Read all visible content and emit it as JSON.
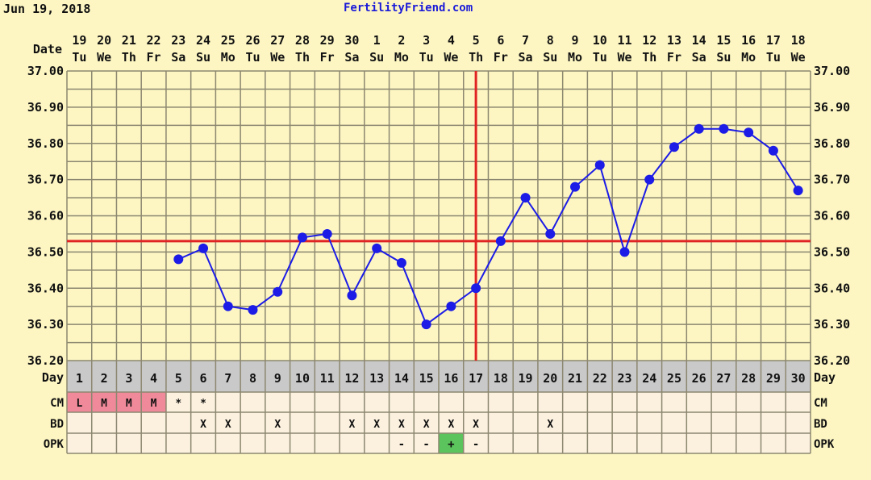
{
  "header": {
    "date": "Jun 19, 2018",
    "site": "FertilityFriend.com"
  },
  "chart_data": {
    "type": "line",
    "title": "FertilityFriend.com",
    "row_labels": {
      "date": "Date",
      "day": "Day",
      "cm": "CM",
      "bd": "BD",
      "opk": "OPK"
    },
    "ylim": [
      36.2,
      37.0
    ],
    "yticks": [
      "37.00",
      "36.90",
      "36.80",
      "36.70",
      "36.60",
      "36.50",
      "36.40",
      "36.30",
      "36.20"
    ],
    "dates": [
      "19",
      "20",
      "21",
      "22",
      "23",
      "24",
      "25",
      "26",
      "27",
      "28",
      "29",
      "30",
      "1",
      "2",
      "3",
      "4",
      "5",
      "6",
      "7",
      "8",
      "9",
      "10",
      "11",
      "12",
      "13",
      "14",
      "15",
      "16",
      "17",
      "18"
    ],
    "weekdays": [
      "Tu",
      "We",
      "Th",
      "Fr",
      "Sa",
      "Su",
      "Mo",
      "Tu",
      "We",
      "Th",
      "Fr",
      "Sa",
      "Su",
      "Mo",
      "Tu",
      "We",
      "Th",
      "Fr",
      "Sa",
      "Su",
      "Mo",
      "Tu",
      "We",
      "Th",
      "Fr",
      "Sa",
      "Su",
      "Mo",
      "Tu",
      "We"
    ],
    "days": [
      1,
      2,
      3,
      4,
      5,
      6,
      7,
      8,
      9,
      10,
      11,
      12,
      13,
      14,
      15,
      16,
      17,
      18,
      19,
      20,
      21,
      22,
      23,
      24,
      25,
      26,
      27,
      28,
      29,
      30
    ],
    "temperatures": [
      null,
      null,
      null,
      null,
      36.48,
      36.51,
      36.35,
      36.34,
      36.39,
      36.54,
      36.55,
      36.38,
      36.51,
      36.47,
      36.3,
      36.35,
      36.4,
      36.53,
      36.65,
      36.55,
      36.68,
      36.74,
      36.5,
      36.7,
      36.79,
      36.84,
      36.84,
      36.83,
      36.78,
      36.67
    ],
    "coverline": 36.53,
    "ovulation_day": 17,
    "cm": [
      "L",
      "M",
      "M",
      "M",
      "*",
      "*",
      "",
      "",
      "",
      "",
      "",
      "",
      "",
      "",
      "",
      "",
      "",
      "",
      "",
      "",
      "",
      "",
      "",
      "",
      "",
      "",
      "",
      "",
      "",
      ""
    ],
    "bd": [
      "",
      "",
      "",
      "",
      "",
      "X",
      "X",
      "",
      "X",
      "",
      "",
      "X",
      "X",
      "X",
      "X",
      "X",
      "X",
      "",
      "",
      "X",
      "",
      "",
      "",
      "",
      "",
      "",
      "",
      "",
      "",
      ""
    ],
    "opk": [
      "",
      "",
      "",
      "",
      "",
      "",
      "",
      "",
      "",
      "",
      "",
      "",
      "",
      "-",
      "-",
      "+",
      "-",
      "",
      "",
      "",
      "",
      "",
      "",
      "",
      "",
      "",
      "",
      "",
      "",
      ""
    ],
    "colors": {
      "line": "#1c1ce6",
      "coverline": "#e02424",
      "menses": "#f08a9a",
      "opk_positive": "#5cc45c",
      "grid": "#8c8770",
      "plot_bg": "#fdf6c3",
      "row_bg": "#fcf1df",
      "day_row_bg": "#c9c9c9"
    }
  }
}
